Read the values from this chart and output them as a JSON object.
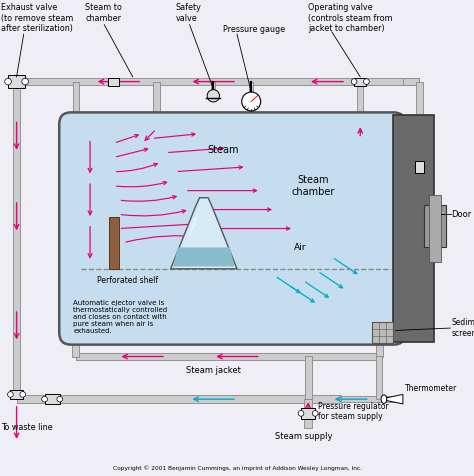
{
  "bg_color": "#f0eef5",
  "chamber_fill": "#c5ddef",
  "chamber_stroke": "#666666",
  "pink": "#e8007a",
  "cyan": "#00aacc",
  "gray_dark": "#555555",
  "gray_med": "#888888",
  "gray_light": "#cccccc",
  "pipe_fill": "#cccccc",
  "pipe_edge": "#888888",
  "door_fill": "#777777",
  "flask_body": "#d5eaf5",
  "flask_liquid": "#88bbcc",
  "brown": "#8B5A2B",
  "white": "#ffffff",
  "labels": {
    "exhaust_valve": "Exhaust valve\n(to remove steam\nafter sterilization)",
    "steam_to_chamber": "Steam to\nchamber",
    "safety_valve": "Safety\nvalve",
    "pressure_gauge": "Pressure gauge",
    "operating_valve": "Operating valve\n(controls steam from\njacket to chamber)",
    "steam_label": "Steam",
    "steam_chamber": "Steam\nchamber",
    "air_label": "Air",
    "perforated_shelf": "Perforated shelf",
    "door_label": "Door",
    "sediment_screen": "Sediment\nscreen",
    "thermometer": "Thermometer",
    "steam_jacket": "Steam jacket",
    "ejector_valve": "Automatic ejector valve is\nthermostatically controlled\nand closes on contact with\npure steam when air is\nexhausted.",
    "pressure_regulator": "Pressure regulator\nfor steam supply",
    "steam_supply": "Steam supply",
    "waste_line": "To waste line",
    "copyright": "Copyright © 2001 Benjamin Cummings, an imprint of Addison Wesley Longman, Inc."
  }
}
